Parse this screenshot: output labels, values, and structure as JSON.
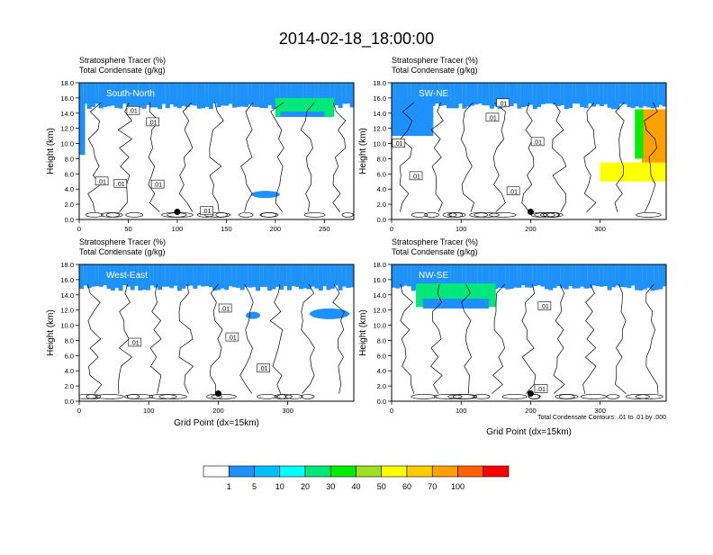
{
  "title": "2014-02-18_18:00:00",
  "chart_data": [
    {
      "type": "heatmap",
      "panel": "top-left",
      "subtitle_line1": "Stratosphere Tracer   (%)",
      "subtitle_line2": "Total Condensate   (g/kg)",
      "section_label": "South-North",
      "ylabel": "Height (km)",
      "xlabel": "",
      "xlim": [
        0,
        280
      ],
      "ylim": [
        0,
        18
      ],
      "x_ticks": [
        "0",
        "50",
        "100",
        "150",
        "200",
        "250"
      ],
      "x_tick_values": [
        0,
        50,
        100,
        150,
        200,
        250
      ],
      "contour_labels": [
        ".01",
        ".01",
        ".01",
        ".01",
        ".01",
        ".01"
      ],
      "contour_label_points": [
        [
          55,
          14.3
        ],
        [
          75,
          12.8
        ],
        [
          23,
          5
        ],
        [
          42,
          4.7
        ],
        [
          80,
          4.6
        ],
        [
          130,
          1.1
        ]
      ],
      "marker_x": 100,
      "marker_y": 1.0
    },
    {
      "type": "heatmap",
      "panel": "top-right",
      "subtitle_line1": "Stratosphere Tracer   (%)",
      "subtitle_line2": "Total Condensate   (g/kg)",
      "section_label": "SW-NE",
      "ylabel": "Height (km)",
      "xlabel": "",
      "xlim": [
        0,
        395
      ],
      "ylim": [
        0,
        18
      ],
      "x_ticks": [
        "0",
        "100",
        "200",
        "300"
      ],
      "x_tick_values": [
        0,
        100,
        200,
        300
      ],
      "contour_labels": [
        ".01",
        ".01",
        ".01",
        ".01",
        ".01",
        ".01"
      ],
      "contour_label_points": [
        [
          160,
          15.3
        ],
        [
          145,
          13.4
        ],
        [
          10,
          10
        ],
        [
          210,
          10.2
        ],
        [
          35,
          5.7
        ],
        [
          175,
          3.7
        ]
      ],
      "marker_x": 200,
      "marker_y": 1.0
    },
    {
      "type": "heatmap",
      "panel": "bottom-left",
      "subtitle_line1": "Stratosphere Tracer   (%)",
      "subtitle_line2": "Total Condensate   (g/kg)",
      "section_label": "West-East",
      "ylabel": "Height (km)",
      "xlabel": "Grid Point (dx=15km)",
      "xlim": [
        0,
        395
      ],
      "ylim": [
        0,
        18
      ],
      "x_ticks": [
        "0",
        "100",
        "200",
        "300"
      ],
      "x_tick_values": [
        0,
        100,
        200,
        300
      ],
      "contour_labels": [
        ".01",
        ".01",
        ".01",
        ".01"
      ],
      "contour_label_points": [
        [
          210,
          12.2
        ],
        [
          80,
          7.7
        ],
        [
          220,
          8.4
        ],
        [
          265,
          4.3
        ]
      ],
      "marker_x": 200,
      "marker_y": 1.0
    },
    {
      "type": "heatmap",
      "panel": "bottom-right",
      "subtitle_line1": "Stratosphere Tracer   (%)",
      "subtitle_line2": "Total Condensate   (g/kg)",
      "section_label": "NW-SE",
      "ylabel": "Height (km)",
      "xlabel": "Grid Point (dx=15km)",
      "xlim": [
        0,
        395
      ],
      "ylim": [
        0,
        18
      ],
      "x_ticks": [
        "0",
        "100",
        "200",
        "300"
      ],
      "x_tick_values": [
        0,
        100,
        200,
        300
      ],
      "contour_labels": [
        ".01",
        ".01"
      ],
      "contour_label_points": [
        [
          220,
          12.5
        ],
        [
          215,
          1.6
        ]
      ],
      "marker_x": 200,
      "marker_y": 1.0,
      "footnote": "Total Condensate Contours: .01 to .01 by .000"
    }
  ],
  "y_ticks": [
    "0.0",
    "2.0",
    "4.0",
    "6.0",
    "8.0",
    "10.0",
    "12.0",
    "14.0",
    "16.0",
    "18.0"
  ],
  "y_tick_values": [
    0,
    2,
    4,
    6,
    8,
    10,
    12,
    14,
    16,
    18
  ],
  "colorbar": {
    "labels": [
      "1",
      "5",
      "10",
      "20",
      "30",
      "40",
      "50",
      "60",
      "70",
      "100"
    ],
    "colors": [
      "#ffffff",
      "#1e90ff",
      "#00bfff",
      "#00ffff",
      "#00e87a",
      "#00ee00",
      "#a0e020",
      "#ffff00",
      "#ffcc00",
      "#ffa000",
      "#ff6000",
      "#ff0000"
    ]
  }
}
